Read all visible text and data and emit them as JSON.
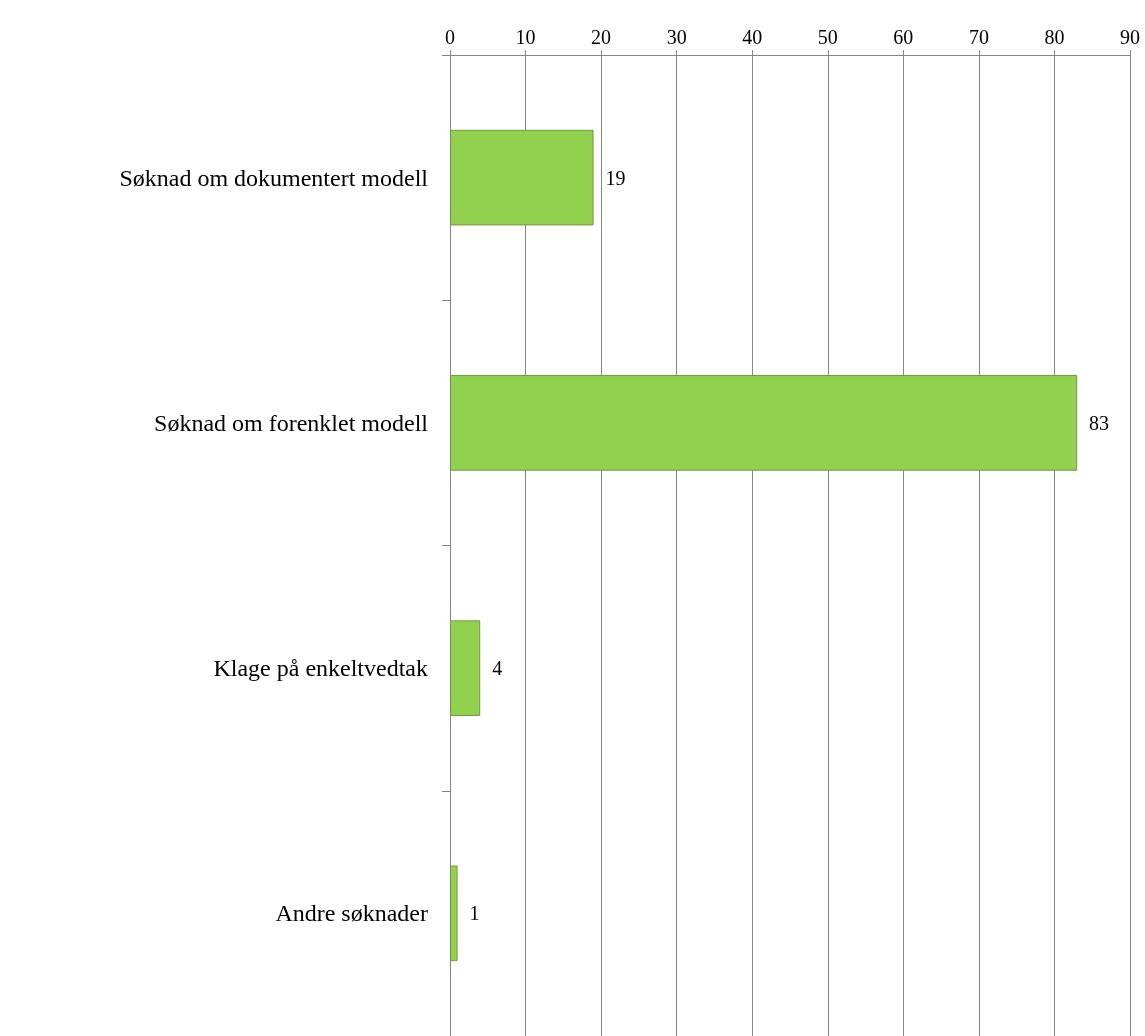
{
  "chart_data": {
    "type": "bar",
    "orientation": "horizontal",
    "categories": [
      "Søknad om dokumentert modell",
      "Søknad om forenklet modell",
      "Klage på enkeltvedtak",
      "Andre søknader"
    ],
    "values": [
      19,
      83,
      4,
      1
    ],
    "color": "#92d050",
    "xlim": [
      0,
      90
    ],
    "xticks": [
      0,
      10,
      20,
      30,
      40,
      50,
      60,
      70,
      80,
      90
    ],
    "grid": "x",
    "data_labels": true
  }
}
